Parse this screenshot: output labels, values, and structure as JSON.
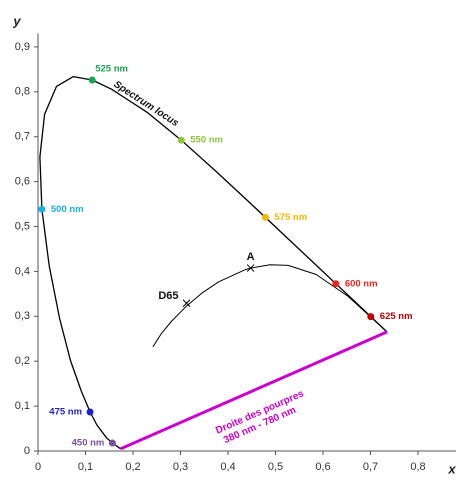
{
  "chart_data": {
    "type": "chromaticity",
    "xlabel": "x",
    "ylabel": "y",
    "xlim": [
      0,
      0.88
    ],
    "ylim": [
      0,
      0.93
    ],
    "xticks": [
      0,
      {
        "value": 0.1,
        "label": "0,1"
      },
      {
        "value": 0.2,
        "label": "0,2"
      },
      {
        "value": 0.3,
        "label": "0,3"
      },
      {
        "value": 0.4,
        "label": "0,4"
      },
      {
        "value": 0.5,
        "label": "0,5"
      },
      {
        "value": 0.6,
        "label": "0,6"
      },
      {
        "value": 0.7,
        "label": "0,7"
      },
      {
        "value": 0.8,
        "label": "0,8"
      }
    ],
    "yticks": [
      0,
      {
        "value": 0.1,
        "label": "0,1"
      },
      {
        "value": 0.2,
        "label": "0,2"
      },
      {
        "value": 0.3,
        "label": "0,3"
      },
      {
        "value": 0.4,
        "label": "0,4"
      },
      {
        "value": 0.5,
        "label": "0,5"
      },
      {
        "value": 0.6,
        "label": "0,6"
      },
      {
        "value": 0.7,
        "label": "0,7"
      },
      {
        "value": 0.8,
        "label": "0,8"
      },
      {
        "value": 0.9,
        "label": "0,9"
      }
    ],
    "spectrum_locus": {
      "label": "Spectrum locus",
      "color": "#000000",
      "x": [
        0.1741,
        0.1566,
        0.144,
        0.1241,
        0.1096,
        0.0913,
        0.0687,
        0.0454,
        0.0235,
        0.0082,
        0.0039,
        0.0139,
        0.0389,
        0.0743,
        0.1142,
        0.1547,
        0.2296,
        0.3016,
        0.3731,
        0.4441,
        0.4788,
        0.5125,
        0.5752,
        0.627,
        0.6658,
        0.6915,
        0.7006,
        0.719,
        0.7347
      ],
      "y": [
        0.005,
        0.0177,
        0.0297,
        0.0578,
        0.0868,
        0.1327,
        0.2007,
        0.295,
        0.4127,
        0.5384,
        0.6548,
        0.7502,
        0.812,
        0.8338,
        0.8262,
        0.8059,
        0.7543,
        0.6923,
        0.6245,
        0.5547,
        0.5202,
        0.4866,
        0.4242,
        0.3725,
        0.334,
        0.3083,
        0.2993,
        0.2809,
        0.2653
      ]
    },
    "purple_line": {
      "label": [
        "Droite des pourpres",
        "380 nm - 780 nm"
      ],
      "color": "#cc00cc",
      "x": [
        0.1741,
        0.7347
      ],
      "y": [
        0.005,
        0.2653
      ]
    },
    "planckian_locus": {
      "color": "#000000",
      "x": [
        0.242,
        0.26,
        0.2807,
        0.3135,
        0.3451,
        0.3805,
        0.4369,
        0.4476,
        0.4887,
        0.5267,
        0.5857,
        0.6528,
        0.7347
      ],
      "y": [
        0.232,
        0.262,
        0.2884,
        0.3237,
        0.3516,
        0.3768,
        0.4041,
        0.4074,
        0.4147,
        0.4133,
        0.3931,
        0.3444,
        0.2653
      ]
    },
    "illuminants": [
      {
        "label": "D65",
        "x": 0.3127,
        "y": 0.329
      },
      {
        "label": "A",
        "x": 0.4476,
        "y": 0.4074
      }
    ],
    "wavelengths": [
      {
        "label": "450 nm",
        "color": "#7b4f9d",
        "x": 0.1566,
        "y": 0.0177
      },
      {
        "label": "475 nm",
        "color": "#1f1fcc",
        "x": 0.1096,
        "y": 0.0868
      },
      {
        "label": "500 nm",
        "color": "#1ab0e8",
        "x": 0.0082,
        "y": 0.5384
      },
      {
        "label": "525 nm",
        "color": "#1aa350",
        "x": 0.1142,
        "y": 0.8262
      },
      {
        "label": "550 nm",
        "color": "#8cc63f",
        "x": 0.3016,
        "y": 0.6923
      },
      {
        "label": "575 nm",
        "color": "#f5b700",
        "x": 0.4788,
        "y": 0.5202
      },
      {
        "label": "600 nm",
        "color": "#e8261c",
        "x": 0.627,
        "y": 0.3725
      },
      {
        "label": "625 nm",
        "color": "#c00000",
        "x": 0.7006,
        "y": 0.2993
      }
    ]
  }
}
